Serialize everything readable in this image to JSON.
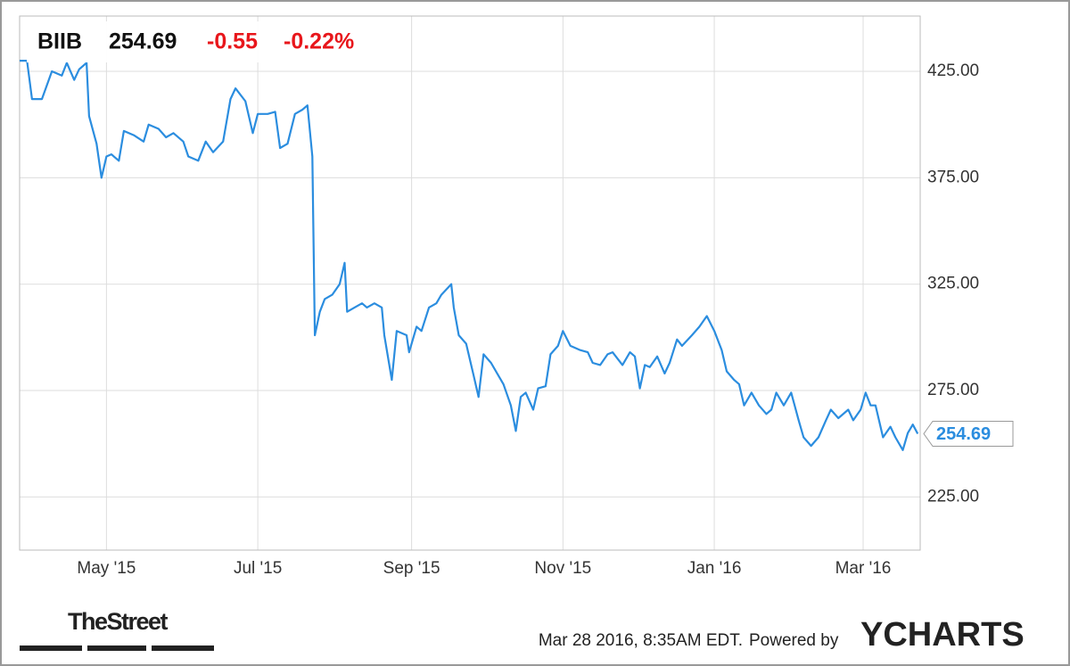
{
  "header": {
    "ticker": "BIIB",
    "price": "254.69",
    "change": "-0.55",
    "change_pct": "-0.22%"
  },
  "chart_data": {
    "type": "line",
    "x": [
      0,
      3,
      5,
      9,
      13,
      17,
      19,
      22,
      24,
      27,
      28,
      31,
      33,
      35,
      37,
      40,
      42,
      46,
      50,
      52,
      56,
      59,
      62,
      66,
      68,
      72,
      75,
      78,
      82,
      85,
      87,
      91,
      94,
      96,
      100,
      103,
      105,
      108,
      111,
      114,
      116,
      118,
      119,
      121,
      123,
      126,
      129,
      131,
      132,
      135,
      138,
      140,
      143,
      146,
      147,
      150,
      152,
      156,
      157,
      160,
      162,
      165,
      168,
      170,
      174,
      175,
      177,
      180,
      183,
      185,
      187,
      190,
      193,
      195,
      198,
      200,
      202,
      204,
      207,
      209,
      212,
      214,
      217,
      219,
      222,
      226,
      229,
      231,
      234,
      237,
      239,
      243,
      246,
      248,
      250,
      252,
      254,
      257,
      260,
      262,
      265,
      267,
      271,
      274,
      277,
      280,
      283,
      285,
      288,
      290,
      292,
      295,
      298,
      301,
      303,
      305,
      308,
      311,
      314,
      316,
      319,
      322,
      325,
      327,
      330,
      334,
      336,
      339,
      341,
      343,
      345,
      348,
      351,
      353,
      356,
      358,
      360,
      362
    ],
    "series": [
      {
        "name": "BIIB",
        "color": "#2b8ddf",
        "values": [
          430,
          430,
          412,
          412,
          425,
          423,
          429,
          421,
          426,
          429,
          404,
          391,
          375,
          385,
          386,
          383,
          397,
          395,
          392,
          400,
          398,
          394,
          396,
          392,
          385,
          383,
          392,
          387,
          392,
          412,
          417,
          411,
          396,
          405,
          405,
          406,
          389,
          391,
          405,
          407,
          409,
          385,
          301,
          312,
          318,
          320,
          325,
          335,
          312,
          314,
          316,
          314,
          316,
          314,
          301,
          280,
          303,
          301,
          293,
          305,
          303,
          314,
          316,
          320,
          325,
          314,
          301,
          297,
          282,
          272,
          292,
          288,
          282,
          278,
          268,
          256,
          272,
          274,
          266,
          276,
          277,
          292,
          296,
          303,
          296,
          294,
          293,
          288,
          287,
          292,
          293,
          287,
          293,
          291,
          276,
          287,
          286,
          291,
          283,
          288,
          299,
          296,
          301,
          305,
          310,
          303,
          294,
          284,
          280,
          278,
          268,
          274,
          268,
          264,
          266,
          274,
          268,
          274,
          261,
          253,
          249,
          253,
          261,
          266,
          262,
          266,
          261,
          266,
          274,
          268,
          268,
          253,
          258,
          253,
          247,
          255,
          259,
          254.69
        ]
      }
    ],
    "xlim": [
      0,
      363
    ],
    "xticks": [
      {
        "value": 35,
        "label": "May '15"
      },
      {
        "value": 96,
        "label": "Jul '15"
      },
      {
        "value": 158,
        "label": "Sep '15"
      },
      {
        "value": 219,
        "label": "Nov '15"
      },
      {
        "value": 280,
        "label": "Jan '16"
      },
      {
        "value": 340,
        "label": "Mar '16"
      }
    ],
    "ylim": [
      200,
      451
    ],
    "yticks": [
      {
        "value": 225,
        "label": "225.00"
      },
      {
        "value": 275,
        "label": "275.00"
      },
      {
        "value": 325,
        "label": "325.00"
      },
      {
        "value": 375,
        "label": "375.00"
      },
      {
        "value": 425,
        "label": "425.00"
      }
    ],
    "grid": true
  },
  "footer": {
    "brand": "TheStreet",
    "timestamp": "Mar 28 2016, 8:35AM EDT.",
    "powered": "Powered by",
    "logo": "YCHARTS"
  }
}
